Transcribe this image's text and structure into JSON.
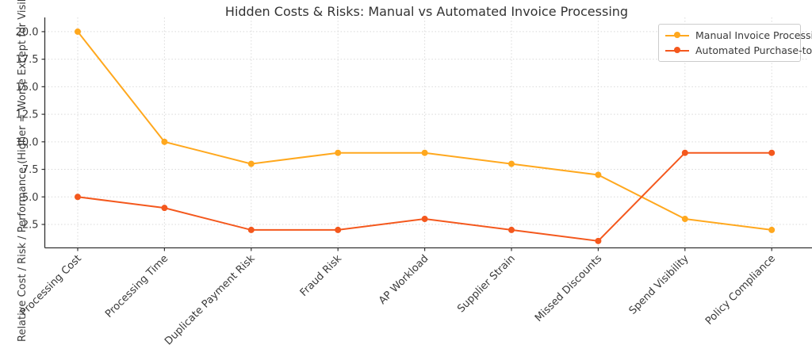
{
  "chart_data": {
    "type": "line",
    "title": "Hidden Costs & Risks: Manual vs Automated Invoice Processing",
    "xlabel": "",
    "ylabel": "Relative Cost / Risk / Performance (Higher = Worse Except for Visibilit",
    "categories": [
      "Processing Cost",
      "Processing Time",
      "Duplicate Payment Risk",
      "Fraud Risk",
      "AP Workload",
      "Supplier Strain",
      "Missed Discounts",
      "Spend Visibility",
      "Policy Compliance"
    ],
    "series": [
      {
        "name": "Manual Invoice Processing",
        "color": "#ffa81e",
        "values": [
          20,
          10,
          8,
          9,
          9,
          8,
          7,
          3,
          2
        ]
      },
      {
        "name": "Automated Purchase-to-Pay",
        "color": "#f4581d",
        "values": [
          5,
          4,
          2,
          2,
          3,
          2,
          1,
          9,
          9
        ]
      }
    ],
    "yticks": [
      2.5,
      5.0,
      7.5,
      10.0,
      12.5,
      15.0,
      17.5,
      20.0
    ],
    "ylim": [
      0.375,
      21.29
    ],
    "grid": "dotted",
    "legend_position": "upper right"
  }
}
